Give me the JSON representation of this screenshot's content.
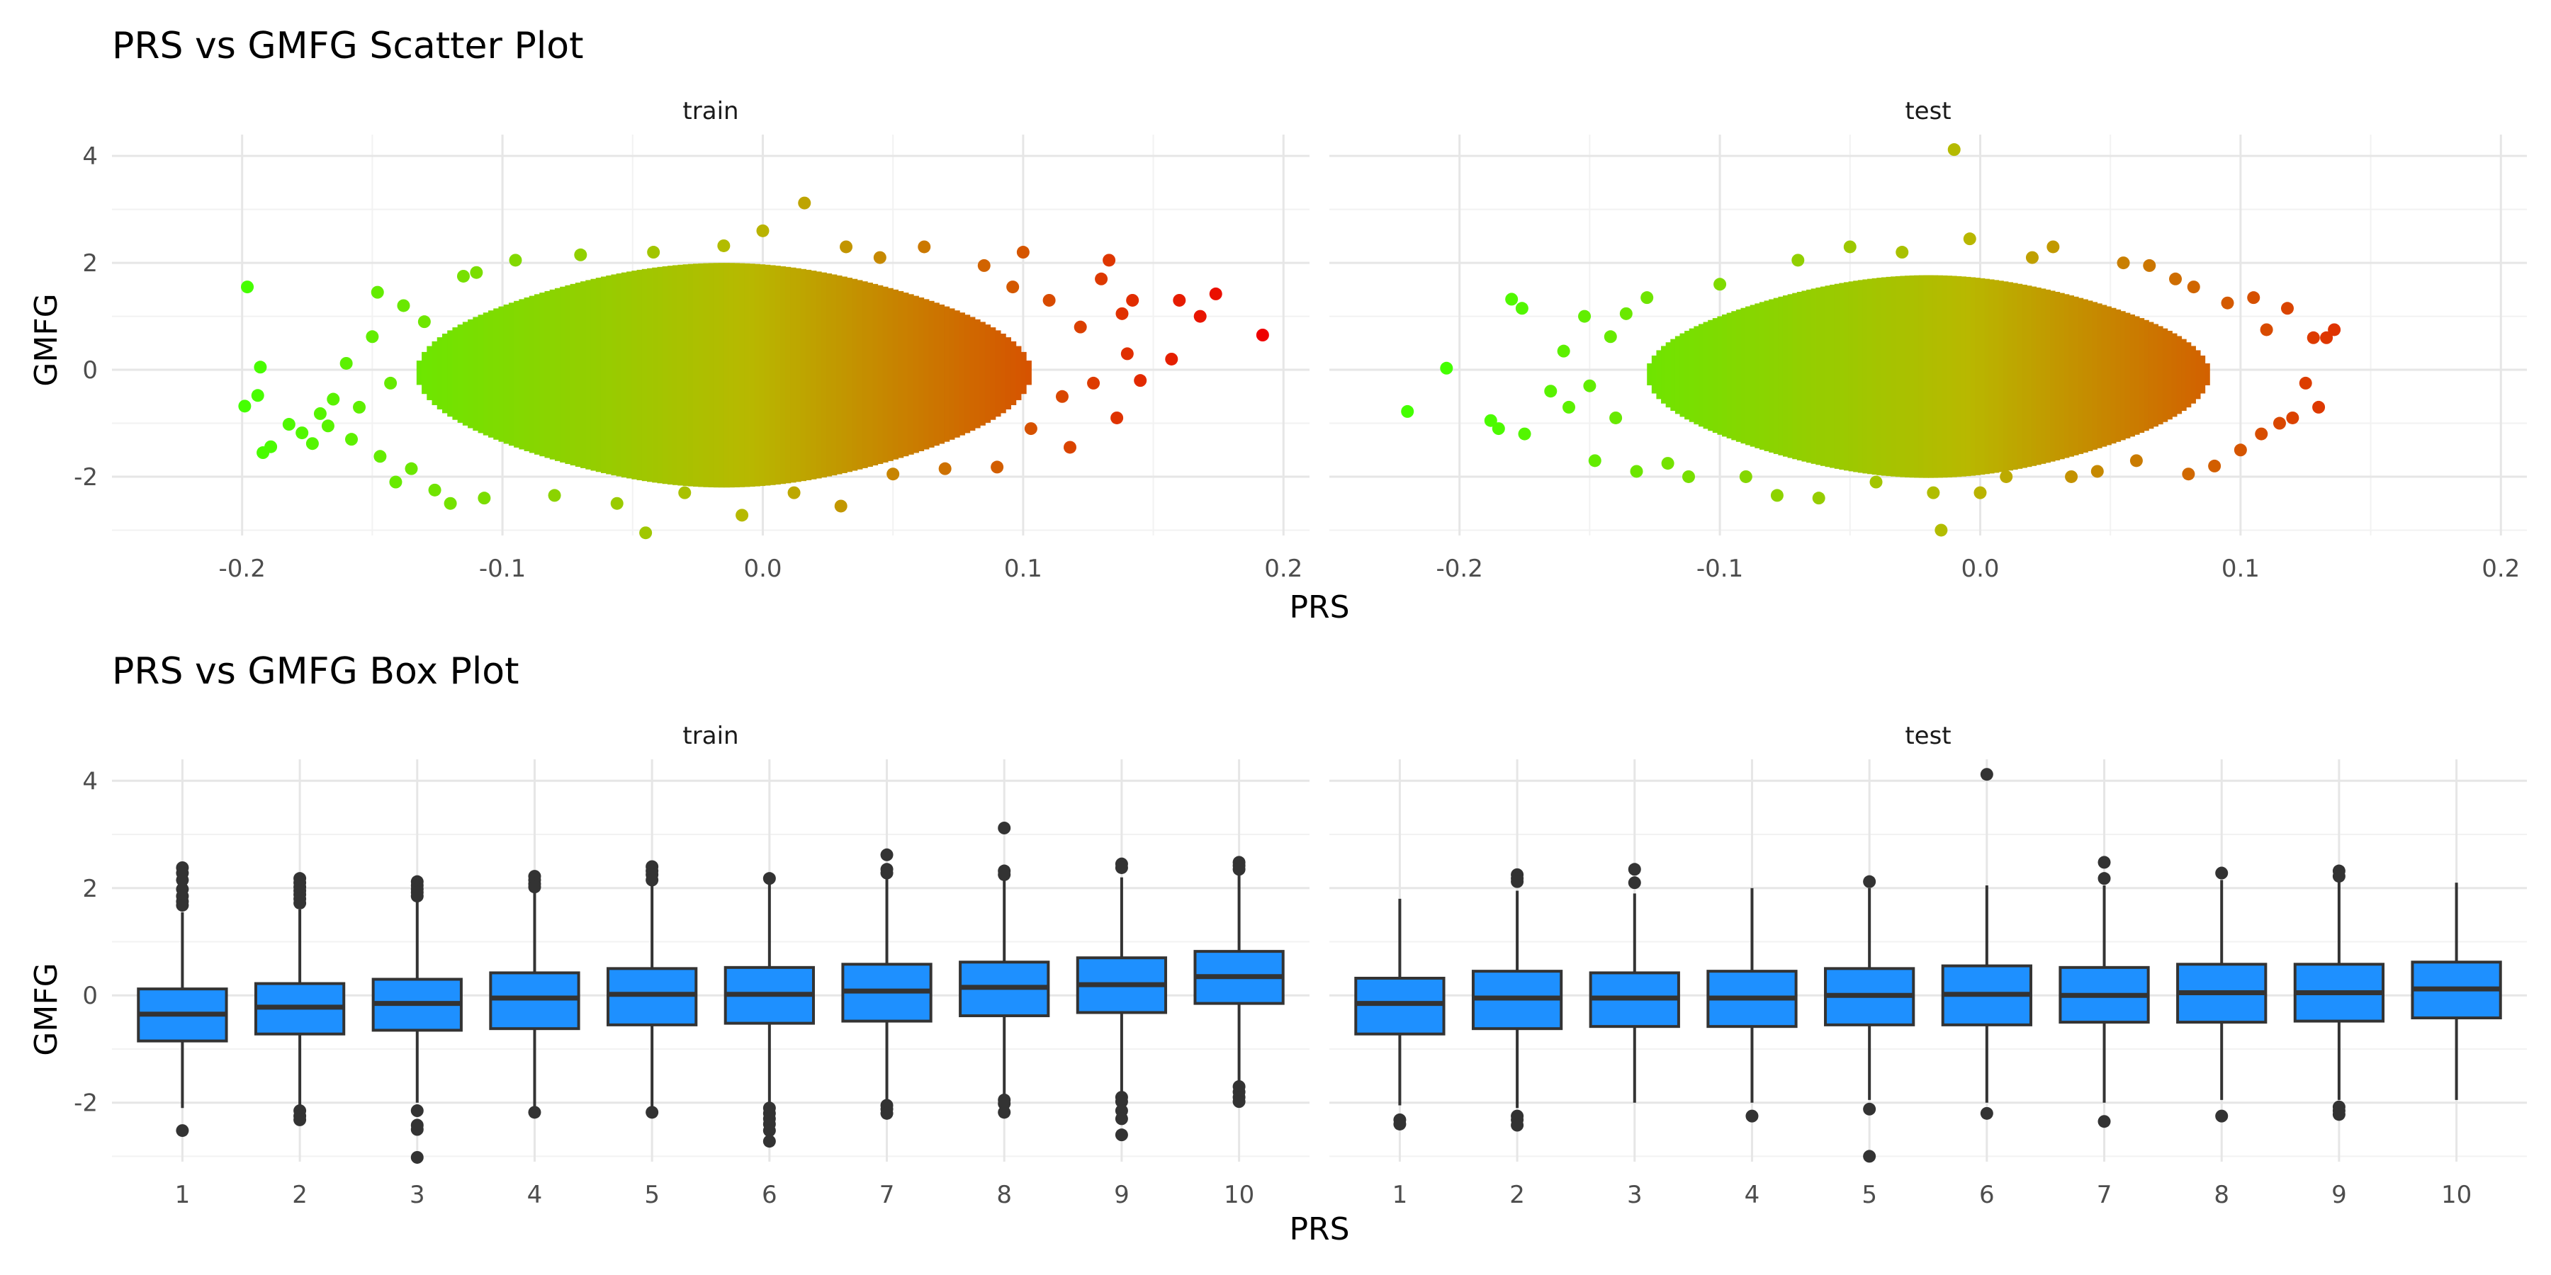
{
  "chart_data": [
    {
      "type": "scatter",
      "title": "PRS vs GMFG Scatter Plot",
      "xlabel": "PRS",
      "ylabel": "GMFG",
      "xlim": [
        -0.25,
        0.21
      ],
      "ylim": [
        -3.1,
        4.4
      ],
      "x_ticks": [
        -0.2,
        -0.1,
        0.0,
        0.1,
        0.2
      ],
      "x_tick_labels": [
        "-0.2",
        "-0.1",
        "0.0",
        "0.1",
        "0.2"
      ],
      "y_ticks": [
        -2,
        0,
        2,
        4
      ],
      "y_tick_labels": [
        "-2",
        "0",
        "2",
        "4"
      ],
      "grid": true,
      "color_scale": {
        "low": "#44ff00",
        "mid": "#b8b800",
        "high": "#ee0000",
        "variable": "PRS"
      },
      "panels": [
        {
          "name": "train",
          "points": [
            [
              -0.198,
              1.55
            ],
            [
              -0.199,
              -0.68
            ],
            [
              -0.193,
              0.05
            ],
            [
              -0.194,
              -0.48
            ],
            [
              -0.192,
              -1.55
            ],
            [
              -0.189,
              -1.44
            ],
            [
              -0.182,
              -1.02
            ],
            [
              -0.177,
              -1.18
            ],
            [
              -0.173,
              -1.38
            ],
            [
              -0.17,
              -0.82
            ],
            [
              -0.167,
              -1.05
            ],
            [
              -0.165,
              -0.55
            ],
            [
              -0.16,
              0.12
            ],
            [
              -0.158,
              -1.3
            ],
            [
              -0.155,
              -0.7
            ],
            [
              -0.15,
              0.62
            ],
            [
              -0.148,
              1.45
            ],
            [
              -0.147,
              -1.62
            ],
            [
              -0.143,
              -0.25
            ],
            [
              -0.141,
              -2.1
            ],
            [
              -0.138,
              1.2
            ],
            [
              -0.135,
              -1.85
            ],
            [
              -0.13,
              0.9
            ],
            [
              -0.126,
              -2.25
            ],
            [
              -0.12,
              -2.5
            ],
            [
              -0.115,
              1.75
            ],
            [
              -0.11,
              1.82
            ],
            [
              -0.107,
              -2.4
            ],
            [
              -0.095,
              2.05
            ],
            [
              -0.08,
              -2.35
            ],
            [
              -0.07,
              2.15
            ],
            [
              -0.056,
              -2.5
            ],
            [
              -0.045,
              -3.05
            ],
            [
              -0.042,
              2.2
            ],
            [
              -0.03,
              -2.3
            ],
            [
              -0.015,
              2.32
            ],
            [
              -0.008,
              -2.72
            ],
            [
              0.0,
              2.6
            ],
            [
              0.012,
              -2.3
            ],
            [
              0.016,
              3.12
            ],
            [
              0.03,
              -2.55
            ],
            [
              0.032,
              2.3
            ],
            [
              0.045,
              2.1
            ],
            [
              0.05,
              -1.95
            ],
            [
              0.062,
              2.3
            ],
            [
              0.07,
              -1.85
            ],
            [
              0.085,
              1.95
            ],
            [
              0.09,
              -1.82
            ],
            [
              0.096,
              1.55
            ],
            [
              0.1,
              2.2
            ],
            [
              0.103,
              -1.1
            ],
            [
              0.11,
              1.3
            ],
            [
              0.115,
              -0.5
            ],
            [
              0.118,
              -1.45
            ],
            [
              0.122,
              0.8
            ],
            [
              0.127,
              -0.25
            ],
            [
              0.13,
              1.7
            ],
            [
              0.133,
              2.05
            ],
            [
              0.136,
              -0.9
            ],
            [
              0.138,
              1.05
            ],
            [
              0.14,
              0.3
            ],
            [
              0.142,
              1.3
            ],
            [
              0.145,
              -0.2
            ],
            [
              0.157,
              0.2
            ],
            [
              0.16,
              1.3
            ],
            [
              0.168,
              1.0
            ],
            [
              0.174,
              1.42
            ],
            [
              0.192,
              0.65
            ]
          ]
        },
        {
          "name": "test",
          "points": [
            [
              -0.22,
              -0.78
            ],
            [
              -0.205,
              0.03
            ],
            [
              -0.188,
              -0.95
            ],
            [
              -0.185,
              -1.1
            ],
            [
              -0.18,
              1.32
            ],
            [
              -0.176,
              1.15
            ],
            [
              -0.175,
              -1.2
            ],
            [
              -0.165,
              -0.4
            ],
            [
              -0.16,
              0.35
            ],
            [
              -0.158,
              -0.7
            ],
            [
              -0.152,
              1.0
            ],
            [
              -0.15,
              -0.3
            ],
            [
              -0.148,
              -1.7
            ],
            [
              -0.142,
              0.62
            ],
            [
              -0.14,
              -0.9
            ],
            [
              -0.136,
              1.05
            ],
            [
              -0.132,
              -1.9
            ],
            [
              -0.128,
              1.35
            ],
            [
              -0.12,
              -1.75
            ],
            [
              -0.112,
              -2.0
            ],
            [
              -0.1,
              1.6
            ],
            [
              -0.09,
              -2.0
            ],
            [
              -0.078,
              -2.35
            ],
            [
              -0.07,
              2.05
            ],
            [
              -0.062,
              -2.4
            ],
            [
              -0.05,
              2.3
            ],
            [
              -0.04,
              -2.1
            ],
            [
              -0.03,
              2.2
            ],
            [
              -0.018,
              -2.3
            ],
            [
              -0.015,
              -3.0
            ],
            [
              -0.01,
              4.12
            ],
            [
              -0.004,
              2.45
            ],
            [
              0.0,
              -2.3
            ],
            [
              0.01,
              -2.0
            ],
            [
              0.02,
              2.1
            ],
            [
              0.028,
              2.3
            ],
            [
              0.035,
              -2.0
            ],
            [
              0.045,
              -1.9
            ],
            [
              0.055,
              2.0
            ],
            [
              0.06,
              -1.7
            ],
            [
              0.065,
              1.95
            ],
            [
              0.075,
              1.7
            ],
            [
              0.08,
              -1.95
            ],
            [
              0.082,
              1.55
            ],
            [
              0.09,
              -1.8
            ],
            [
              0.095,
              1.25
            ],
            [
              0.1,
              -1.5
            ],
            [
              0.105,
              1.35
            ],
            [
              0.108,
              -1.2
            ],
            [
              0.11,
              0.75
            ],
            [
              0.115,
              -1.0
            ],
            [
              0.118,
              1.15
            ],
            [
              0.12,
              -0.9
            ],
            [
              0.125,
              -0.25
            ],
            [
              0.128,
              0.6
            ],
            [
              0.13,
              -0.7
            ],
            [
              0.133,
              0.6
            ],
            [
              0.136,
              0.75
            ]
          ]
        }
      ]
    },
    {
      "type": "box",
      "title": "PRS vs GMFG Box Plot",
      "xlabel": "PRS",
      "ylabel": "GMFG",
      "categories": [
        "1",
        "2",
        "3",
        "4",
        "5",
        "6",
        "7",
        "8",
        "9",
        "10"
      ],
      "ylim": [
        -3.1,
        4.4
      ],
      "y_ticks": [
        -2,
        0,
        2,
        4
      ],
      "y_tick_labels": [
        "-2",
        "0",
        "2",
        "4"
      ],
      "grid": true,
      "box_color": "#1e90ff",
      "panels": [
        {
          "name": "train",
          "boxes": [
            {
              "category": "1",
              "whisker_low": -2.1,
              "q1": -0.85,
              "median": -0.35,
              "q3": 0.12,
              "whisker_high": 1.55,
              "outliers": [
                2.38,
                2.28,
                2.15,
                1.98,
                1.85,
                1.75,
                1.68,
                -2.52
              ]
            },
            {
              "category": "2",
              "whisker_low": -2.05,
              "q1": -0.72,
              "median": -0.22,
              "q3": 0.22,
              "whisker_high": 1.6,
              "outliers": [
                2.18,
                2.1,
                2.02,
                1.95,
                1.88,
                1.8,
                1.72,
                -2.15,
                -2.25,
                -2.32
              ]
            },
            {
              "category": "3",
              "whisker_low": -2.0,
              "q1": -0.65,
              "median": -0.15,
              "q3": 0.3,
              "whisker_high": 1.75,
              "outliers": [
                2.12,
                2.05,
                1.98,
                1.92,
                1.85,
                -2.15,
                -2.42,
                -2.5,
                -3.02
              ]
            },
            {
              "category": "4",
              "whisker_low": -2.1,
              "q1": -0.62,
              "median": -0.05,
              "q3": 0.42,
              "whisker_high": 1.95,
              "outliers": [
                2.22,
                2.15,
                2.08,
                2.02,
                -2.18
              ]
            },
            {
              "category": "5",
              "whisker_low": -2.1,
              "q1": -0.55,
              "median": 0.02,
              "q3": 0.5,
              "whisker_high": 2.05,
              "outliers": [
                2.4,
                2.32,
                2.25,
                2.15,
                -2.18
              ]
            },
            {
              "category": "6",
              "whisker_low": -2.0,
              "q1": -0.52,
              "median": 0.02,
              "q3": 0.52,
              "whisker_high": 2.1,
              "outliers": [
                2.18,
                -2.1,
                -2.2,
                -2.3,
                -2.4,
                -2.52,
                -2.72
              ]
            },
            {
              "category": "7",
              "whisker_low": -2.0,
              "q1": -0.48,
              "median": 0.08,
              "q3": 0.58,
              "whisker_high": 2.2,
              "outliers": [
                2.62,
                2.35,
                2.28,
                -2.05,
                -2.12,
                -2.2
              ]
            },
            {
              "category": "8",
              "whisker_low": -1.85,
              "q1": -0.38,
              "median": 0.15,
              "q3": 0.62,
              "whisker_high": 2.15,
              "outliers": [
                3.12,
                2.32,
                2.25,
                -1.95,
                -2.02,
                -2.18
              ]
            },
            {
              "category": "9",
              "whisker_low": -1.85,
              "q1": -0.32,
              "median": 0.2,
              "q3": 0.7,
              "whisker_high": 2.2,
              "outliers": [
                2.45,
                2.38,
                -1.9,
                -1.98,
                -2.15,
                -2.3,
                -2.6
              ]
            },
            {
              "category": "10",
              "whisker_low": -1.6,
              "q1": -0.15,
              "median": 0.35,
              "q3": 0.82,
              "whisker_high": 2.3,
              "outliers": [
                2.48,
                2.42,
                2.35,
                -1.7,
                -1.8,
                -1.9,
                -1.98
              ]
            }
          ]
        },
        {
          "name": "test",
          "boxes": [
            {
              "category": "1",
              "whisker_low": -2.05,
              "q1": -0.72,
              "median": -0.15,
              "q3": 0.32,
              "whisker_high": 1.8,
              "outliers": [
                -2.32,
                -2.4
              ]
            },
            {
              "category": "2",
              "whisker_low": -2.1,
              "q1": -0.62,
              "median": -0.05,
              "q3": 0.45,
              "whisker_high": 1.95,
              "outliers": [
                2.25,
                2.18,
                2.12,
                -2.25,
                -2.32,
                -2.42
              ]
            },
            {
              "category": "3",
              "whisker_low": -2.0,
              "q1": -0.58,
              "median": -0.05,
              "q3": 0.42,
              "whisker_high": 1.9,
              "outliers": [
                2.35,
                2.1
              ]
            },
            {
              "category": "4",
              "whisker_low": -2.0,
              "q1": -0.58,
              "median": -0.05,
              "q3": 0.45,
              "whisker_high": 2.0,
              "outliers": [
                -2.25
              ]
            },
            {
              "category": "5",
              "whisker_low": -1.95,
              "q1": -0.55,
              "median": 0.0,
              "q3": 0.5,
              "whisker_high": 2.0,
              "outliers": [
                2.12,
                -2.12,
                -3.0
              ]
            },
            {
              "category": "6",
              "whisker_low": -2.0,
              "q1": -0.55,
              "median": 0.02,
              "q3": 0.55,
              "whisker_high": 2.05,
              "outliers": [
                4.12,
                -2.2
              ]
            },
            {
              "category": "7",
              "whisker_low": -2.0,
              "q1": -0.5,
              "median": 0.0,
              "q3": 0.52,
              "whisker_high": 2.05,
              "outliers": [
                2.48,
                2.18,
                -2.35
              ]
            },
            {
              "category": "8",
              "whisker_low": -1.95,
              "q1": -0.5,
              "median": 0.05,
              "q3": 0.58,
              "whisker_high": 2.15,
              "outliers": [
                2.28,
                -2.25
              ]
            },
            {
              "category": "9",
              "whisker_low": -1.95,
              "q1": -0.48,
              "median": 0.05,
              "q3": 0.58,
              "whisker_high": 2.15,
              "outliers": [
                2.32,
                2.22,
                -2.08,
                -2.15,
                -2.22
              ]
            },
            {
              "category": "10",
              "whisker_low": -1.95,
              "q1": -0.42,
              "median": 0.12,
              "q3": 0.62,
              "whisker_high": 2.1,
              "outliers": []
            }
          ]
        }
      ]
    }
  ]
}
